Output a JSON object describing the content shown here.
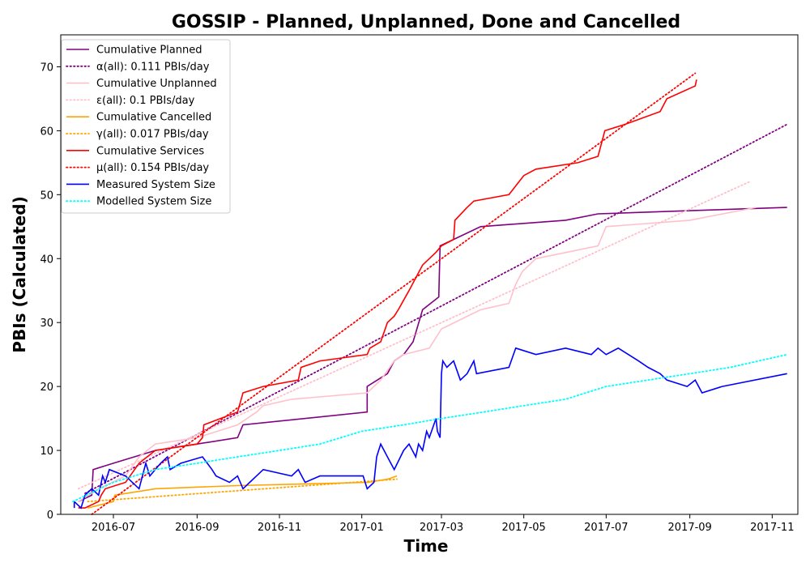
{
  "chart_data": {
    "type": "line",
    "title": "GOSSIP - Planned, Unplanned, Done  and Cancelled",
    "xlabel": "Time",
    "ylabel": "PBIs (Calculated)",
    "xlim": [
      "2016-05-23",
      "2017-11-20"
    ],
    "ylim": [
      0,
      75
    ],
    "x_ticks": [
      "2016-07",
      "2016-09",
      "2016-11",
      "2017-01",
      "2017-03",
      "2017-05",
      "2017-07",
      "2017-09",
      "2017-11"
    ],
    "x_tick_dates": [
      "2016-07-01",
      "2016-09-01",
      "2016-11-01",
      "2017-01-01",
      "2017-03-01",
      "2017-05-01",
      "2017-07-01",
      "2017-09-01",
      "2017-11-01"
    ],
    "y_ticks": [
      0,
      10,
      20,
      30,
      40,
      50,
      60,
      70
    ],
    "grid": false,
    "legend_position": "top-left",
    "series": [
      {
        "name": "Cumulative Planned",
        "color": "#800080",
        "style": "solid",
        "points": [
          [
            "2016-06-05",
            2
          ],
          [
            "2016-06-15",
            3
          ],
          [
            "2016-06-16",
            7
          ],
          [
            "2016-07-01",
            8
          ],
          [
            "2016-08-01",
            10
          ],
          [
            "2016-09-01",
            11
          ],
          [
            "2016-10-01",
            12
          ],
          [
            "2016-10-05",
            14
          ],
          [
            "2017-01-05",
            16
          ],
          [
            "2017-01-05",
            20
          ],
          [
            "2017-01-20",
            22
          ],
          [
            "2017-01-25",
            24
          ],
          [
            "2017-02-01",
            25
          ],
          [
            "2017-02-08",
            27
          ],
          [
            "2017-02-15",
            32
          ],
          [
            "2017-02-27",
            34
          ],
          [
            "2017-02-28",
            42
          ],
          [
            "2017-03-10",
            43
          ],
          [
            "2017-03-30",
            45
          ],
          [
            "2017-06-01",
            46
          ],
          [
            "2017-06-25",
            47
          ],
          [
            "2017-09-01",
            47.5
          ],
          [
            "2017-11-12",
            48
          ]
        ]
      },
      {
        "name": "α(all): 0.111 PBIs/day",
        "color": "#800080",
        "style": "dotted",
        "points": [
          [
            "2016-06-10",
            3.3
          ],
          [
            "2017-11-12",
            61
          ]
        ]
      },
      {
        "name": "Cumulative Unplanned",
        "color": "#ffc0cb",
        "style": "solid",
        "points": [
          [
            "2016-06-05",
            2
          ],
          [
            "2016-06-20",
            4
          ],
          [
            "2016-07-10",
            6
          ],
          [
            "2016-07-20",
            9
          ],
          [
            "2016-08-01",
            11
          ],
          [
            "2016-09-01",
            12
          ],
          [
            "2016-10-01",
            14
          ],
          [
            "2016-10-15",
            16
          ],
          [
            "2016-10-20",
            17
          ],
          [
            "2016-11-10",
            18
          ],
          [
            "2017-01-05",
            19
          ],
          [
            "2017-01-15",
            21
          ],
          [
            "2017-01-25",
            24
          ],
          [
            "2017-02-01",
            25
          ],
          [
            "2017-02-20",
            26
          ],
          [
            "2017-03-01",
            29
          ],
          [
            "2017-03-30",
            32
          ],
          [
            "2017-04-20",
            33
          ],
          [
            "2017-04-25",
            36
          ],
          [
            "2017-04-30",
            38
          ],
          [
            "2017-05-10",
            40
          ],
          [
            "2017-06-25",
            42
          ],
          [
            "2017-07-01",
            45
          ],
          [
            "2017-09-01",
            46
          ],
          [
            "2017-10-20",
            48
          ]
        ]
      },
      {
        "name": "ε(all): 0.1 PBIs/day",
        "color": "#ffc0cb",
        "style": "dotted",
        "points": [
          [
            "2016-06-05",
            4
          ],
          [
            "2017-10-15",
            52
          ]
        ]
      },
      {
        "name": "Cumulative Cancelled",
        "color": "#ffa500",
        "style": "solid",
        "points": [
          [
            "2016-06-12",
            1
          ],
          [
            "2016-07-01",
            2
          ],
          [
            "2016-07-02",
            3
          ],
          [
            "2016-08-01",
            4
          ],
          [
            "2016-10-01",
            4.5
          ],
          [
            "2017-01-06",
            5
          ],
          [
            "2017-01-20",
            5.5
          ],
          [
            "2017-01-27",
            6
          ]
        ]
      },
      {
        "name": "γ(all): 0.017 PBIs/day",
        "color": "#ffa500",
        "style": "dotted",
        "points": [
          [
            "2016-06-12",
            2
          ],
          [
            "2017-01-27",
            5.5
          ]
        ]
      },
      {
        "name": "Cumulative Services",
        "color": "#ff0000",
        "style": "solid",
        "points": [
          [
            "2016-06-05",
            1
          ],
          [
            "2016-06-10",
            1
          ],
          [
            "2016-06-20",
            2
          ],
          [
            "2016-06-22",
            3
          ],
          [
            "2016-06-25",
            4
          ],
          [
            "2016-07-10",
            5
          ],
          [
            "2016-07-20",
            8
          ],
          [
            "2016-08-01",
            10
          ],
          [
            "2016-09-01",
            11
          ],
          [
            "2016-09-05",
            12
          ],
          [
            "2016-09-06",
            14
          ],
          [
            "2016-10-01",
            16
          ],
          [
            "2016-10-05",
            19
          ],
          [
            "2016-10-20",
            20
          ],
          [
            "2016-11-15",
            21
          ],
          [
            "2016-11-17",
            23
          ],
          [
            "2016-12-01",
            24
          ],
          [
            "2017-01-05",
            25
          ],
          [
            "2017-01-07",
            26
          ],
          [
            "2017-01-15",
            27
          ],
          [
            "2017-01-20",
            30
          ],
          [
            "2017-01-25",
            31
          ],
          [
            "2017-01-28",
            32
          ],
          [
            "2017-02-05",
            35
          ],
          [
            "2017-02-15",
            39
          ],
          [
            "2017-02-25",
            41
          ],
          [
            "2017-03-01",
            42
          ],
          [
            "2017-03-10",
            43
          ],
          [
            "2017-03-11",
            46
          ],
          [
            "2017-03-20",
            48
          ],
          [
            "2017-03-25",
            49
          ],
          [
            "2017-04-20",
            50
          ],
          [
            "2017-05-01",
            53
          ],
          [
            "2017-05-10",
            54
          ],
          [
            "2017-06-10",
            55
          ],
          [
            "2017-06-25",
            56
          ],
          [
            "2017-06-30",
            60
          ],
          [
            "2017-07-15",
            61
          ],
          [
            "2017-08-10",
            63
          ],
          [
            "2017-08-15",
            65
          ],
          [
            "2017-09-05",
            67
          ],
          [
            "2017-09-06",
            68
          ]
        ]
      },
      {
        "name": "μ(all): 0.154 PBIs/day",
        "color": "#ff0000",
        "style": "dotted",
        "points": [
          [
            "2016-06-15",
            0
          ],
          [
            "2017-09-05",
            69
          ]
        ]
      },
      {
        "name": "Measured System Size",
        "color": "#0000ff",
        "style": "solid",
        "points": [
          [
            "2016-06-02",
            1
          ],
          [
            "2016-06-02",
            2
          ],
          [
            "2016-06-07",
            1
          ],
          [
            "2016-06-10",
            3
          ],
          [
            "2016-06-15",
            4
          ],
          [
            "2016-06-20",
            3
          ],
          [
            "2016-06-23",
            6
          ],
          [
            "2016-06-25",
            5
          ],
          [
            "2016-06-28",
            7
          ],
          [
            "2016-07-10",
            6
          ],
          [
            "2016-07-20",
            4
          ],
          [
            "2016-07-25",
            8
          ],
          [
            "2016-07-28",
            6
          ],
          [
            "2016-08-05",
            8
          ],
          [
            "2016-08-10",
            9
          ],
          [
            "2016-08-12",
            7
          ],
          [
            "2016-08-20",
            8
          ],
          [
            "2016-09-05",
            9
          ],
          [
            "2016-09-12",
            7
          ],
          [
            "2016-09-15",
            6
          ],
          [
            "2016-09-25",
            5
          ],
          [
            "2016-10-01",
            6
          ],
          [
            "2016-10-05",
            4
          ],
          [
            "2016-10-10",
            5
          ],
          [
            "2016-10-15",
            6
          ],
          [
            "2016-10-20",
            7
          ],
          [
            "2016-11-10",
            6
          ],
          [
            "2016-11-15",
            7
          ],
          [
            "2016-11-20",
            5
          ],
          [
            "2016-12-01",
            6
          ],
          [
            "2017-01-02",
            6
          ],
          [
            "2017-01-05",
            4
          ],
          [
            "2017-01-10",
            5
          ],
          [
            "2017-01-12",
            9
          ],
          [
            "2017-01-15",
            11
          ],
          [
            "2017-01-20",
            9
          ],
          [
            "2017-01-25",
            7
          ],
          [
            "2017-02-01",
            10
          ],
          [
            "2017-02-05",
            11
          ],
          [
            "2017-02-10",
            9
          ],
          [
            "2017-02-12",
            11
          ],
          [
            "2017-02-15",
            10
          ],
          [
            "2017-02-18",
            13
          ],
          [
            "2017-02-20",
            12
          ],
          [
            "2017-02-25",
            15
          ],
          [
            "2017-02-26",
            13
          ],
          [
            "2017-02-28",
            12
          ],
          [
            "2017-03-01",
            22
          ],
          [
            "2017-03-02",
            24
          ],
          [
            "2017-03-05",
            23
          ],
          [
            "2017-03-10",
            24
          ],
          [
            "2017-03-15",
            21
          ],
          [
            "2017-03-20",
            22
          ],
          [
            "2017-03-25",
            24
          ],
          [
            "2017-03-27",
            22
          ],
          [
            "2017-04-20",
            23
          ],
          [
            "2017-04-25",
            26
          ],
          [
            "2017-05-10",
            25
          ],
          [
            "2017-06-01",
            26
          ],
          [
            "2017-06-20",
            25
          ],
          [
            "2017-06-25",
            26
          ],
          [
            "2017-07-01",
            25
          ],
          [
            "2017-07-10",
            26
          ],
          [
            "2017-07-25",
            24
          ],
          [
            "2017-08-01",
            23
          ],
          [
            "2017-08-10",
            22
          ],
          [
            "2017-08-15",
            21
          ],
          [
            "2017-08-30",
            20
          ],
          [
            "2017-09-05",
            21
          ],
          [
            "2017-09-10",
            19
          ],
          [
            "2017-09-25",
            20
          ],
          [
            "2017-11-12",
            22
          ]
        ]
      },
      {
        "name": "Modelled System Size",
        "color": "#00ffff",
        "style": "dotted",
        "points": [
          [
            "2016-06-01",
            2
          ],
          [
            "2016-07-01",
            5
          ],
          [
            "2016-08-01",
            7
          ],
          [
            "2016-09-01",
            8
          ],
          [
            "2016-10-01",
            9
          ],
          [
            "2016-11-01",
            10
          ],
          [
            "2016-12-01",
            11
          ],
          [
            "2017-01-01",
            13
          ],
          [
            "2017-02-01",
            14
          ],
          [
            "2017-03-01",
            15
          ],
          [
            "2017-04-01",
            16
          ],
          [
            "2017-05-01",
            17
          ],
          [
            "2017-06-01",
            18
          ],
          [
            "2017-07-01",
            20
          ],
          [
            "2017-08-01",
            21
          ],
          [
            "2017-09-01",
            22
          ],
          [
            "2017-10-01",
            23
          ],
          [
            "2017-11-12",
            25
          ]
        ]
      }
    ]
  }
}
